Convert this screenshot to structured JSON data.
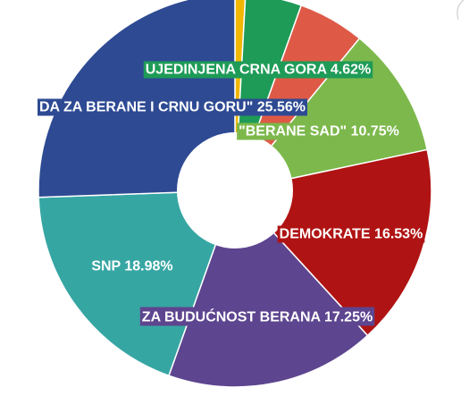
{
  "chart_data": {
    "type": "pie",
    "donut": true,
    "title": "",
    "slices": [
      {
        "label": "",
        "value": 0.86,
        "color": "#f2b705",
        "text": ""
      },
      {
        "label": "UJEDINJENA CRNA GORA",
        "value": 4.62,
        "color": "#1e9b57",
        "text": "UJEDINJENA CRNA GORA 4.62%"
      },
      {
        "label": "",
        "value": 5.45,
        "color": "#de5a47",
        "text": ""
      },
      {
        "label": "\"BERANE SAD\"",
        "value": 10.75,
        "color": "#7cb84b",
        "text": "\"BERANE SAD\" 10.75%"
      },
      {
        "label": "DEMOKRATE",
        "value": 16.53,
        "color": "#b01313",
        "text": "DEMOKRATE 16.53%"
      },
      {
        "label": "ZA BUDUĆNOST BERANA",
        "value": 17.25,
        "color": "#5d458f",
        "text": "ZA BUDUĆNOST BERANA 17.25%"
      },
      {
        "label": "SNP",
        "value": 18.98,
        "color": "#36a6a3",
        "text": "SNP 18.98%"
      },
      {
        "label": "DA ZA BERANE I CRNU GORU\"",
        "value": 25.56,
        "color": "#2e4a93",
        "text": "DA ZA BERANE I CRNU GORU\" 25.56%"
      }
    ]
  }
}
